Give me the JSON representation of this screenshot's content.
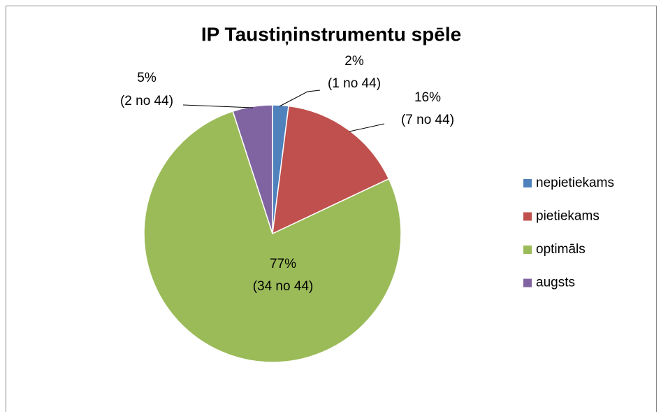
{
  "chart_data": {
    "type": "pie",
    "title": "IP Taustiņinstrumentu spēle",
    "categories": [
      "nepietiekams",
      "pietiekams",
      "optimāls",
      "augsts"
    ],
    "values": [
      2,
      16,
      77,
      5
    ],
    "value_labels": [
      "2%",
      "16%",
      "77%",
      "5%"
    ],
    "count_labels": [
      "(1 no 44)",
      "(7 no 44)",
      "(34 no 44)",
      "(2 no 44)"
    ],
    "colors": [
      "#4f81bd",
      "#c0504d",
      "#9bbb59",
      "#8064a2"
    ],
    "legend": "right"
  }
}
